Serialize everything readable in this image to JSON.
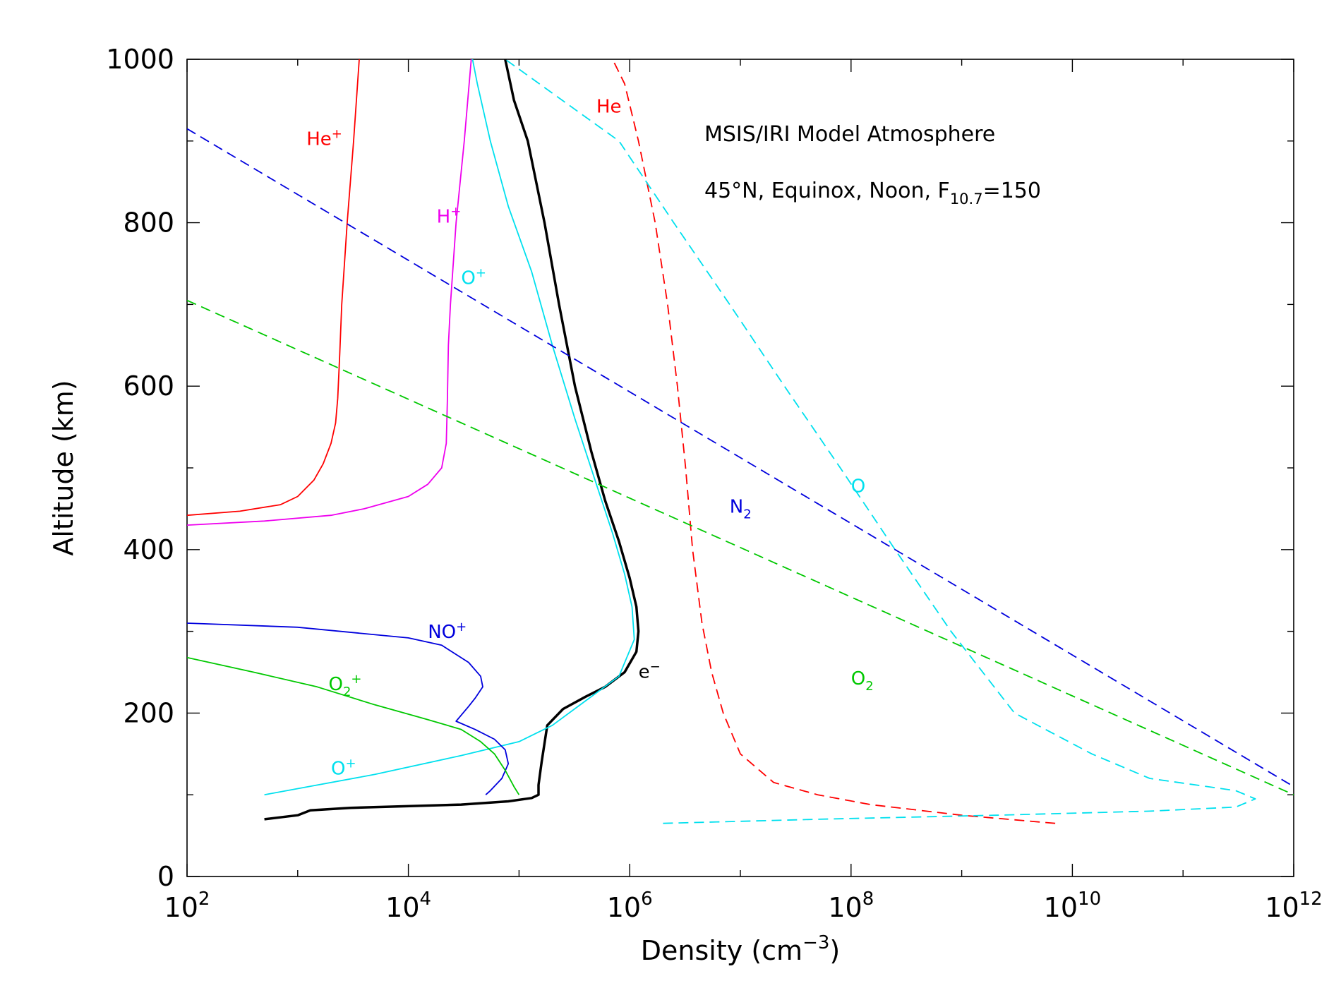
{
  "chart_data": {
    "type": "line",
    "title": "MSIS/IRI Model Atmosphere",
    "subtitle": {
      "main": "45°N, Equinox, Noon, F",
      "sub": "10.7",
      "tail": "=150"
    },
    "xlabel": {
      "main": "Density (cm",
      "sup": "−3",
      "tail": ")"
    },
    "ylabel": "Altitude (km)",
    "x_scale": "log",
    "xlim": [
      100,
      1000000000000
    ],
    "ylim": [
      0,
      1000
    ],
    "x_ticks": [
      {
        "value": 100,
        "base": "10",
        "exp": "2"
      },
      {
        "value": 10000,
        "base": "10",
        "exp": "4"
      },
      {
        "value": 1000000,
        "base": "10",
        "exp": "6"
      },
      {
        "value": 100000000,
        "base": "10",
        "exp": "8"
      },
      {
        "value": 10000000000,
        "base": "10",
        "exp": "10"
      },
      {
        "value": 1000000000000,
        "base": "10",
        "exp": "12"
      }
    ],
    "y_ticks": [
      "0",
      "200",
      "400",
      "600",
      "800",
      "1000"
    ],
    "grid": false,
    "series": [
      {
        "key": "e-",
        "main": "e",
        "sup": "−",
        "color": "#000000",
        "dash": false,
        "width": 3.5,
        "label_at": [
          1200000,
          243
        ],
        "points": [
          [
            500,
            70
          ],
          [
            1000,
            75
          ],
          [
            1300,
            81
          ],
          [
            3000,
            84
          ],
          [
            30000,
            88
          ],
          [
            80000,
            92
          ],
          [
            130000,
            96
          ],
          [
            150000,
            100
          ],
          [
            150000,
            112
          ],
          [
            160000,
            140
          ],
          [
            180000,
            185
          ],
          [
            250000,
            205
          ],
          [
            400000,
            220
          ],
          [
            600000,
            232
          ],
          [
            900000,
            250
          ],
          [
            1150000,
            275
          ],
          [
            1200000,
            300
          ],
          [
            1150000,
            330
          ],
          [
            1000000,
            365
          ],
          [
            800000,
            410
          ],
          [
            600000,
            460
          ],
          [
            450000,
            520
          ],
          [
            320000,
            600
          ],
          [
            230000,
            700
          ],
          [
            170000,
            800
          ],
          [
            120000,
            900
          ],
          [
            90000,
            950
          ],
          [
            75000,
            1000
          ]
        ]
      },
      {
        "key": "O+",
        "main": "O",
        "sup": "+",
        "color": "#00e0ee",
        "dash": false,
        "width": 1.8,
        "label_at": [
          2000,
          125
        ],
        "label2_at": [
          30000,
          725
        ],
        "points": [
          [
            500,
            100
          ],
          [
            5000,
            125
          ],
          [
            30000,
            148
          ],
          [
            100000,
            165
          ],
          [
            200000,
            185
          ],
          [
            400000,
            215
          ],
          [
            800000,
            245
          ],
          [
            1100000,
            290
          ],
          [
            1050000,
            330
          ],
          [
            900000,
            370
          ],
          [
            700000,
            420
          ],
          [
            500000,
            480
          ],
          [
            320000,
            560
          ],
          [
            200000,
            650
          ],
          [
            130000,
            740
          ],
          [
            80000,
            820
          ],
          [
            55000,
            900
          ],
          [
            42000,
            970
          ],
          [
            38000,
            1000
          ]
        ]
      },
      {
        "key": "NO+",
        "main": "NO",
        "sup": "+",
        "color": "#0000dd",
        "dash": false,
        "width": 1.8,
        "label_at": [
          15000,
          292
        ],
        "points": [
          [
            100,
            310
          ],
          [
            1000,
            305
          ],
          [
            10000,
            292
          ],
          [
            20000,
            283
          ],
          [
            35000,
            262
          ],
          [
            45000,
            245
          ],
          [
            47000,
            232
          ],
          [
            40000,
            218
          ],
          [
            35000,
            208
          ],
          [
            27000,
            190
          ],
          [
            40000,
            180
          ],
          [
            60000,
            168
          ],
          [
            75000,
            155
          ],
          [
            80000,
            138
          ],
          [
            70000,
            120
          ],
          [
            55000,
            105
          ],
          [
            50000,
            100
          ]
        ]
      },
      {
        "key": "O2+",
        "main": "O",
        "sub": "2",
        "sup": "+",
        "color": "#00c800",
        "dash": false,
        "width": 1.8,
        "label_at": [
          1900,
          228
        ],
        "points": [
          [
            100,
            268
          ],
          [
            400,
            250
          ],
          [
            1500,
            232
          ],
          [
            5000,
            210
          ],
          [
            15000,
            192
          ],
          [
            30000,
            180
          ],
          [
            45000,
            165
          ],
          [
            60000,
            150
          ],
          [
            75000,
            130
          ],
          [
            90000,
            110
          ],
          [
            100000,
            100
          ]
        ]
      },
      {
        "key": "He+",
        "main": "He",
        "sup": "+",
        "color": "#ff0000",
        "dash": false,
        "width": 1.8,
        "label_at": [
          1200,
          895
        ],
        "points": [
          [
            100,
            442
          ],
          [
            300,
            447
          ],
          [
            700,
            455
          ],
          [
            1000,
            465
          ],
          [
            1400,
            485
          ],
          [
            1700,
            505
          ],
          [
            2000,
            530
          ],
          [
            2200,
            555
          ],
          [
            2300,
            585
          ],
          [
            2400,
            640
          ],
          [
            2500,
            700
          ],
          [
            2800,
            800
          ],
          [
            3200,
            900
          ],
          [
            3600,
            1000
          ]
        ]
      },
      {
        "key": "H+",
        "main": "H",
        "sup": "+",
        "color": "#ee00ee",
        "dash": false,
        "width": 1.8,
        "label_at": [
          18000,
          800
        ],
        "points": [
          [
            100,
            430
          ],
          [
            500,
            435
          ],
          [
            2000,
            442
          ],
          [
            4000,
            450
          ],
          [
            10000,
            465
          ],
          [
            15000,
            480
          ],
          [
            20000,
            500
          ],
          [
            22000,
            530
          ],
          [
            22500,
            580
          ],
          [
            23000,
            650
          ],
          [
            24000,
            700
          ],
          [
            27000,
            800
          ],
          [
            32000,
            900
          ],
          [
            37000,
            1000
          ]
        ]
      },
      {
        "key": "He",
        "main": "He",
        "color": "#ff0000",
        "dash": true,
        "width": 1.8,
        "label_at": [
          500000,
          935
        ],
        "points": [
          [
            7000000000,
            65
          ],
          [
            1000000000,
            75
          ],
          [
            150000000,
            88
          ],
          [
            50000000,
            100
          ],
          [
            20000000,
            115
          ],
          [
            10000000,
            150
          ],
          [
            7000000,
            200
          ],
          [
            5500000,
            250
          ],
          [
            4500000,
            310
          ],
          [
            3700000,
            400
          ],
          [
            3200000,
            500
          ],
          [
            2700000,
            600
          ],
          [
            2200000,
            700
          ],
          [
            1700000,
            800
          ],
          [
            1200000,
            900
          ],
          [
            900000,
            970
          ],
          [
            700000,
            1000
          ]
        ]
      },
      {
        "key": "O",
        "main": "O",
        "color": "#00e0ee",
        "dash": true,
        "width": 1.8,
        "label_at": [
          100000000,
          470
        ],
        "points": [
          [
            2000000,
            65
          ],
          [
            50000000,
            70
          ],
          [
            2000000000,
            75
          ],
          [
            50000000000,
            80
          ],
          [
            300000000000,
            85
          ],
          [
            450000000000,
            95
          ],
          [
            300000000000,
            105
          ],
          [
            50000000000,
            120
          ],
          [
            15000000000,
            150
          ],
          [
            3000000000,
            200
          ],
          [
            800000000,
            300
          ],
          [
            250000000,
            400
          ],
          [
            80000000,
            500
          ],
          [
            25000000,
            600
          ],
          [
            8000000,
            700
          ],
          [
            2500000,
            800
          ],
          [
            800000,
            900
          ],
          [
            75000,
            1000
          ]
        ]
      },
      {
        "key": "N2",
        "main": "N",
        "sub": "2",
        "color": "#0000dd",
        "dash": true,
        "width": 1.8,
        "label_at": [
          8000000,
          445
        ],
        "points": [
          [
            100,
            915
          ],
          [
            1000000000000,
            110
          ]
        ]
      },
      {
        "key": "O2",
        "main": "O",
        "sub": "2",
        "color": "#00c800",
        "dash": true,
        "width": 1.8,
        "label_at": [
          100000000,
          235
        ],
        "points": [
          [
            100,
            705
          ],
          [
            1000000000000,
            100
          ]
        ]
      }
    ]
  }
}
